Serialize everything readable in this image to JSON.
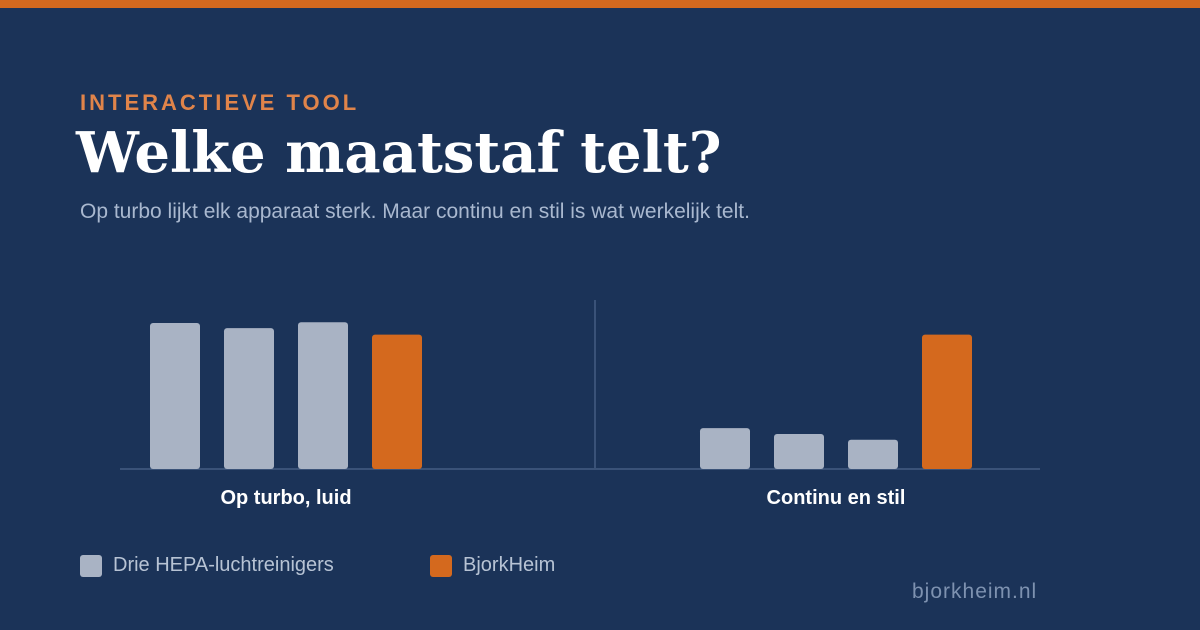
{
  "header": {
    "eyebrow": "INTERACTIEVE TOOL",
    "title": "Welke maatstaf telt?",
    "subtitle": "Op turbo lijkt elk apparaat sterk. Maar continu en stil is wat werkelijk telt."
  },
  "colors": {
    "background": "#1b3358",
    "accent": "#d4691e",
    "competitor": "#a9b3c4",
    "axis": "#3a5278"
  },
  "chart_data": {
    "type": "bar",
    "title": "",
    "xlabel": "",
    "ylabel": "",
    "ylim": [
      0,
      100
    ],
    "grid": false,
    "legend_position": "bottom-left",
    "groups": [
      {
        "label": "Op turbo, luid",
        "values": [
          100,
          96.5,
          100.5,
          92
        ]
      },
      {
        "label": "Continu en stil",
        "values": [
          28,
          24,
          20,
          92
        ]
      }
    ],
    "series": [
      {
        "name": "Drie HEPA-luchtreinigers",
        "color": "#a9b3c4"
      },
      {
        "name": "BjorkHeim",
        "color": "#d4691e"
      }
    ]
  },
  "legend": {
    "items": [
      {
        "label": "Drie HEPA-luchtreinigers",
        "color": "#a9b3c4"
      },
      {
        "label": "BjorkHeim",
        "color": "#d4691e"
      }
    ]
  },
  "footer": {
    "site": "bjorkheim.nl"
  }
}
